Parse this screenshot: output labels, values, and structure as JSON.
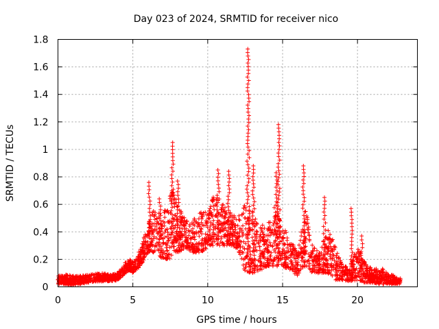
{
  "chart_data": {
    "type": "scatter",
    "title": "Day 023 of 2024, SRMTID for receiver nico",
    "xlabel": "GPS time / hours",
    "ylabel": "SRMTID / TECUs",
    "xlim": [
      0,
      24
    ],
    "ylim": [
      0,
      1.8
    ],
    "xticks": [
      0,
      5,
      10,
      15,
      20
    ],
    "yticks": [
      0,
      0.2,
      0.4,
      0.6,
      0.8,
      1,
      1.2,
      1.4,
      1.6,
      1.8
    ],
    "xtick_labels": [
      "0",
      "5",
      "10",
      "15",
      "20"
    ],
    "ytick_labels": [
      "0",
      "0.2",
      "0.4",
      "0.6",
      "0.8",
      "1",
      "1.2",
      "1.4",
      "1.6",
      "1.8"
    ],
    "grid": true,
    "marker": "+",
    "color": "#ff0000",
    "envelope": {
      "hours": [
        0,
        0.5,
        1,
        1.5,
        2,
        2.5,
        3,
        3.5,
        4,
        4.5,
        4.8,
        5,
        5.5,
        6,
        6.5,
        7,
        7.5,
        8,
        8.5,
        9,
        9.5,
        10,
        10.5,
        11,
        11.5,
        12,
        12.5,
        13,
        13.5,
        14,
        14.5,
        15,
        15.5,
        16,
        16.5,
        17,
        17.5,
        18,
        18.5,
        19,
        19.5,
        20,
        20.5,
        21,
        21.5,
        22,
        22.5,
        22.9
      ],
      "low": [
        0.02,
        0.02,
        0.01,
        0.02,
        0.03,
        0.04,
        0.04,
        0.04,
        0.05,
        0.1,
        0.12,
        0.1,
        0.15,
        0.25,
        0.25,
        0.2,
        0.2,
        0.25,
        0.28,
        0.25,
        0.25,
        0.28,
        0.3,
        0.3,
        0.3,
        0.28,
        0.1,
        0.1,
        0.12,
        0.15,
        0.15,
        0.15,
        0.12,
        0.08,
        0.15,
        0.1,
        0.1,
        0.1,
        0.05,
        0.05,
        0.04,
        0.05,
        0.03,
        0.03,
        0.02,
        0.02,
        0.02,
        0.02
      ],
      "high": [
        0.08,
        0.09,
        0.08,
        0.08,
        0.09,
        0.1,
        0.1,
        0.09,
        0.1,
        0.18,
        0.2,
        0.18,
        0.28,
        0.45,
        0.6,
        0.5,
        0.75,
        0.6,
        0.5,
        0.48,
        0.55,
        0.55,
        0.7,
        0.6,
        0.55,
        0.5,
        0.6,
        0.55,
        0.45,
        0.45,
        0.6,
        0.45,
        0.35,
        0.25,
        0.6,
        0.3,
        0.25,
        0.45,
        0.3,
        0.15,
        0.15,
        0.3,
        0.2,
        0.12,
        0.15,
        0.1,
        0.08,
        0.06
      ]
    },
    "spikes": [
      {
        "hour": 6.1,
        "peak": 0.76
      },
      {
        "hour": 6.8,
        "peak": 0.64
      },
      {
        "hour": 7.65,
        "peak": 1.05
      },
      {
        "hour": 8.0,
        "peak": 0.77
      },
      {
        "hour": 10.7,
        "peak": 0.85
      },
      {
        "hour": 11.4,
        "peak": 0.84
      },
      {
        "hour": 12.7,
        "peak": 1.73
      },
      {
        "hour": 13.05,
        "peak": 0.88
      },
      {
        "hour": 14.6,
        "peak": 0.83
      },
      {
        "hour": 14.75,
        "peak": 1.18
      },
      {
        "hour": 16.4,
        "peak": 0.88
      },
      {
        "hour": 17.8,
        "peak": 0.65
      },
      {
        "hour": 19.6,
        "peak": 0.57
      },
      {
        "hour": 20.3,
        "peak": 0.37
      }
    ]
  }
}
